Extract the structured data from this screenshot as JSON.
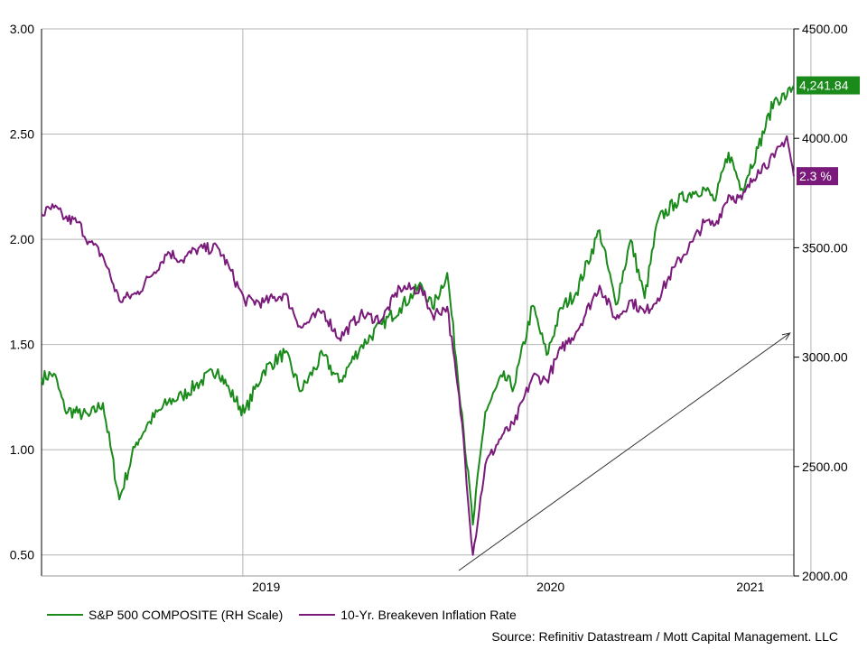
{
  "chart_data": {
    "type": "line",
    "title": "",
    "x_range": [
      "2018-09-15",
      "2021-05-10"
    ],
    "x_ticks": [
      {
        "label": "2019",
        "date": "2019-07-01"
      },
      {
        "label": "2020",
        "date": "2020-07-01"
      },
      {
        "label": "2021",
        "date": "2021-03-15"
      }
    ],
    "x_gridlines": [
      "2019-06-01",
      "2020-06-01",
      "2021-06-01"
    ],
    "y_left": {
      "min": 0.4,
      "max": 3.0,
      "ticks": [
        "3.00",
        "2.50",
        "2.00",
        "1.50",
        "1.00",
        "0.50"
      ],
      "tick_values": [
        3.0,
        2.5,
        2.0,
        1.5,
        1.0,
        0.5
      ]
    },
    "y_right": {
      "min": 2000,
      "max": 4500,
      "ticks": [
        "4500.00",
        "4000.00",
        "3500.00",
        "3000.00",
        "2500.00",
        "2000.00"
      ],
      "tick_values": [
        4500,
        4000,
        3500,
        3000,
        2500,
        2000
      ]
    },
    "grid": true,
    "legend_position": "bottom-left",
    "series": [
      {
        "name": "S&P 500 COMPOSITE (RH Scale)",
        "axis": "right",
        "color": "#1a8a1a",
        "last_label": "4,241.84",
        "points": [
          [
            "2018-09-15",
            2905
          ],
          [
            "2018-10-01",
            2925
          ],
          [
            "2018-10-15",
            2760
          ],
          [
            "2018-11-01",
            2745
          ],
          [
            "2018-11-15",
            2730
          ],
          [
            "2018-12-03",
            2790
          ],
          [
            "2018-12-24",
            2350
          ],
          [
            "2019-01-15",
            2610
          ],
          [
            "2019-02-01",
            2705
          ],
          [
            "2019-02-25",
            2795
          ],
          [
            "2019-03-15",
            2822
          ],
          [
            "2019-04-01",
            2870
          ],
          [
            "2019-04-30",
            2945
          ],
          [
            "2019-05-15",
            2845
          ],
          [
            "2019-06-03",
            2745
          ],
          [
            "2019-06-28",
            2940
          ],
          [
            "2019-07-25",
            3020
          ],
          [
            "2019-08-15",
            2845
          ],
          [
            "2019-09-12",
            3010
          ],
          [
            "2019-10-03",
            2885
          ],
          [
            "2019-10-30",
            3045
          ],
          [
            "2019-11-27",
            3150
          ],
          [
            "2019-12-20",
            3225
          ],
          [
            "2020-01-17",
            3330
          ],
          [
            "2020-01-31",
            3225
          ],
          [
            "2020-02-19",
            3385
          ],
          [
            "2020-03-09",
            2745
          ],
          [
            "2020-03-23",
            2235
          ],
          [
            "2020-04-08",
            2750
          ],
          [
            "2020-04-30",
            2910
          ],
          [
            "2020-05-15",
            2865
          ],
          [
            "2020-06-08",
            3235
          ],
          [
            "2020-06-26",
            3010
          ],
          [
            "2020-07-15",
            3225
          ],
          [
            "2020-08-03",
            3295
          ],
          [
            "2020-09-02",
            3580
          ],
          [
            "2020-09-23",
            3240
          ],
          [
            "2020-10-12",
            3535
          ],
          [
            "2020-10-30",
            3270
          ],
          [
            "2020-11-16",
            3625
          ],
          [
            "2020-12-08",
            3705
          ],
          [
            "2020-12-31",
            3755
          ],
          [
            "2021-01-15",
            3770
          ],
          [
            "2021-01-29",
            3715
          ],
          [
            "2021-02-15",
            3935
          ],
          [
            "2021-03-04",
            3770
          ],
          [
            "2021-03-25",
            3955
          ],
          [
            "2021-04-15",
            4175
          ],
          [
            "2021-05-01",
            4195
          ],
          [
            "2021-05-10",
            4241.84
          ]
        ]
      },
      {
        "name": "10-Yr. Breakeven Inflation Rate",
        "axis": "left",
        "color": "#7a1a7a",
        "last_label": "2.3 %",
        "points": [
          [
            "2018-09-15",
            2.12
          ],
          [
            "2018-10-01",
            2.15
          ],
          [
            "2018-10-15",
            2.1
          ],
          [
            "2018-11-01",
            2.08
          ],
          [
            "2018-11-15",
            1.99
          ],
          [
            "2018-12-03",
            1.92
          ],
          [
            "2018-12-24",
            1.71
          ],
          [
            "2019-01-15",
            1.74
          ],
          [
            "2019-02-01",
            1.82
          ],
          [
            "2019-02-25",
            1.94
          ],
          [
            "2019-03-15",
            1.9
          ],
          [
            "2019-04-01",
            1.95
          ],
          [
            "2019-04-30",
            1.96
          ],
          [
            "2019-05-15",
            1.86
          ],
          [
            "2019-06-03",
            1.71
          ],
          [
            "2019-06-28",
            1.7
          ],
          [
            "2019-07-25",
            1.74
          ],
          [
            "2019-08-15",
            1.58
          ],
          [
            "2019-09-12",
            1.66
          ],
          [
            "2019-10-03",
            1.53
          ],
          [
            "2019-10-30",
            1.64
          ],
          [
            "2019-11-27",
            1.62
          ],
          [
            "2019-12-20",
            1.77
          ],
          [
            "2020-01-17",
            1.76
          ],
          [
            "2020-01-31",
            1.64
          ],
          [
            "2020-02-19",
            1.68
          ],
          [
            "2020-03-09",
            1.13
          ],
          [
            "2020-03-23",
            0.5
          ],
          [
            "2020-04-08",
            0.93
          ],
          [
            "2020-04-30",
            1.07
          ],
          [
            "2020-05-15",
            1.12
          ],
          [
            "2020-06-08",
            1.35
          ],
          [
            "2020-06-26",
            1.33
          ],
          [
            "2020-07-15",
            1.48
          ],
          [
            "2020-08-03",
            1.56
          ],
          [
            "2020-09-02",
            1.78
          ],
          [
            "2020-09-23",
            1.62
          ],
          [
            "2020-10-12",
            1.71
          ],
          [
            "2020-10-30",
            1.65
          ],
          [
            "2020-11-16",
            1.72
          ],
          [
            "2020-12-08",
            1.87
          ],
          [
            "2020-12-31",
            1.99
          ],
          [
            "2021-01-15",
            2.08
          ],
          [
            "2021-01-29",
            2.07
          ],
          [
            "2021-02-15",
            2.21
          ],
          [
            "2021-03-04",
            2.19
          ],
          [
            "2021-03-25",
            2.33
          ],
          [
            "2021-04-15",
            2.39
          ],
          [
            "2021-05-01",
            2.49
          ],
          [
            "2021-05-10",
            2.3
          ]
        ]
      }
    ],
    "annotations": [
      {
        "type": "arrow",
        "from": [
          "2020-01-20",
          1950
        ],
        "to": [
          "2021-05-05",
          3110
        ],
        "axis": "right",
        "color": "#333333"
      }
    ]
  },
  "legend": {
    "sp500_label": "S&P 500 COMPOSITE (RH Scale)",
    "breakeven_label": "10-Yr. Breakeven Inflation Rate",
    "sp500_color": "#1a8a1a",
    "breakeven_color": "#7a1a7a"
  },
  "source": "Source: Refinitiv Datastream / Mott Capital Management. LLC"
}
